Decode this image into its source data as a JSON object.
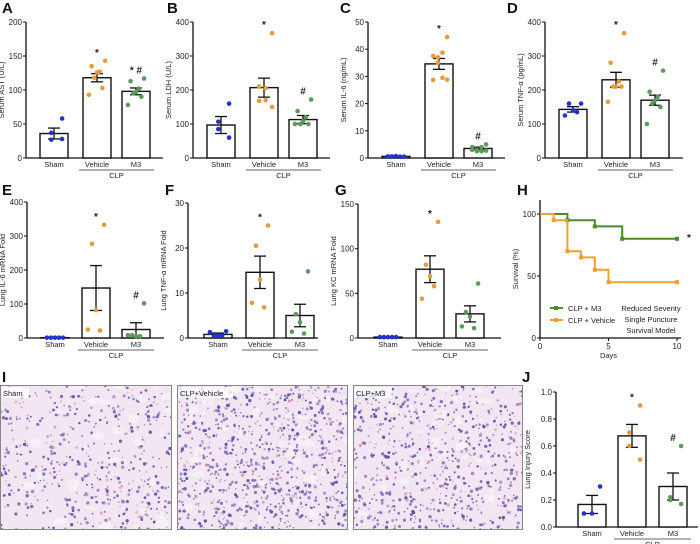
{
  "colors": {
    "Sham": "#2233cc",
    "Vehicle": "#e8993a",
    "M3": "#5c9a5c",
    "surv_m3": "#4e8c2a",
    "surv_vehicle": "#f0a030",
    "tissue_bg": "#f1e6f1",
    "tissue_cell": "#5b4aa8",
    "tissue_pink": "#d88ab8"
  },
  "chart_data": [
    {
      "panel": "A",
      "type": "bar",
      "ylabel": "Serum AST (U/L)",
      "ylim": [
        0,
        200
      ],
      "yticks": [
        0,
        50,
        100,
        150,
        200
      ],
      "group_label": "CLP",
      "groups": [
        {
          "name": "Sham",
          "mean": 36,
          "sem": 8,
          "points": [
            58,
            37,
            27,
            28
          ],
          "annot": ""
        },
        {
          "name": "Vehicle",
          "mean": 118,
          "sem": 6,
          "points": [
            143,
            135,
            127,
            126,
            118,
            103,
            93
          ],
          "annot": "*"
        },
        {
          "name": "M3",
          "mean": 98,
          "sem": 5,
          "points": [
            117,
            113,
            102,
            97,
            95,
            90,
            78
          ],
          "annot": "* #"
        }
      ]
    },
    {
      "panel": "B",
      "type": "bar",
      "ylabel": "Serum LDH (U/L)",
      "ylim": [
        0,
        400
      ],
      "yticks": [
        0,
        100,
        200,
        300,
        400
      ],
      "group_label": "CLP",
      "groups": [
        {
          "name": "Sham",
          "mean": 97,
          "sem": 25,
          "points": [
            160,
            107,
            85,
            60
          ],
          "annot": ""
        },
        {
          "name": "Vehicle",
          "mean": 207,
          "sem": 28,
          "points": [
            367,
            210,
            205,
            170,
            168,
            150
          ],
          "annot": "*"
        },
        {
          "name": "M3",
          "mean": 113,
          "sem": 12,
          "points": [
            172,
            138,
            120,
            108,
            100,
            100,
            100
          ],
          "annot": "#"
        }
      ]
    },
    {
      "panel": "C",
      "type": "bar",
      "ylabel": "Serum IL-6 (ng/mL)",
      "ylim": [
        0,
        50
      ],
      "yticks": [
        0,
        10,
        20,
        30,
        40,
        50
      ],
      "group_label": "CLP",
      "groups": [
        {
          "name": "Sham",
          "mean": 0.6,
          "sem": 0.1,
          "points": [
            0.5,
            0.6,
            0.7,
            0.5,
            0.6
          ],
          "annot": ""
        },
        {
          "name": "Vehicle",
          "mean": 34.6,
          "sem": 2,
          "points": [
            44.5,
            37.5,
            38.7,
            37,
            35,
            29.5,
            28.7,
            28.8
          ],
          "annot": "*"
        },
        {
          "name": "M3",
          "mean": 3.5,
          "sem": 0.5,
          "points": [
            5,
            4,
            4,
            3,
            2.5,
            2.5,
            3,
            2.7
          ],
          "annot": "#"
        }
      ]
    },
    {
      "panel": "D",
      "type": "bar",
      "ylabel": "Serum TNF-α (pg/mL)",
      "ylim": [
        0,
        400
      ],
      "yticks": [
        0,
        100,
        200,
        300,
        400
      ],
      "group_label": "CLP",
      "groups": [
        {
          "name": "Sham",
          "mean": 143,
          "sem": 8,
          "points": [
            160,
            160,
            140,
            135,
            125
          ],
          "annot": ""
        },
        {
          "name": "Vehicle",
          "mean": 230,
          "sem": 22,
          "points": [
            367,
            280,
            225,
            210,
            210,
            210,
            165
          ],
          "annot": "*"
        },
        {
          "name": "M3",
          "mean": 170,
          "sem": 15,
          "points": [
            257,
            195,
            180,
            170,
            160,
            150,
            100
          ],
          "annot": "#"
        }
      ]
    },
    {
      "panel": "E",
      "type": "bar",
      "ylabel": "Lung IL-6 mRNA Fold",
      "ylim": [
        0,
        400
      ],
      "yticks": [
        0,
        100,
        200,
        300,
        400
      ],
      "group_label": "CLP",
      "groups": [
        {
          "name": "Sham",
          "mean": 1,
          "sem": 0.3,
          "points": [
            1,
            1,
            1,
            1,
            1
          ],
          "annot": ""
        },
        {
          "name": "Vehicle",
          "mean": 147,
          "sem": 66,
          "points": [
            333,
            277,
            82,
            22,
            25
          ],
          "annot": "*"
        },
        {
          "name": "M3",
          "mean": 25,
          "sem": 20,
          "points": [
            102,
            8,
            5,
            5,
            8
          ],
          "annot": "#"
        }
      ]
    },
    {
      "panel": "F",
      "type": "bar",
      "ylabel": "Lung TNF-α mRNA Fold",
      "ylim": [
        0,
        30
      ],
      "yticks": [
        0,
        10,
        20,
        30
      ],
      "group_label": "CLP",
      "groups": [
        {
          "name": "Sham",
          "mean": 0.8,
          "sem": 0.3,
          "points": [
            1.5,
            0.5,
            0.5,
            0.5,
            1.3
          ],
          "annot": ""
        },
        {
          "name": "Vehicle",
          "mean": 14.6,
          "sem": 3.6,
          "points": [
            25,
            20.5,
            13,
            6.8,
            7.8
          ],
          "annot": "*"
        },
        {
          "name": "M3",
          "mean": 5,
          "sem": 2.5,
          "points": [
            14.8,
            5.3,
            3.5,
            1,
            1.4
          ],
          "annot": ""
        }
      ]
    },
    {
      "panel": "G",
      "type": "bar",
      "ylabel": "Lung KC mRNA Fold",
      "ylim": [
        0,
        150
      ],
      "yticks": [
        0,
        50,
        100,
        150
      ],
      "group_label": "CLP",
      "groups": [
        {
          "name": "Sham",
          "mean": 1,
          "sem": 0.3,
          "points": [
            1,
            1,
            1,
            1,
            1
          ],
          "annot": ""
        },
        {
          "name": "Vehicle",
          "mean": 77,
          "sem": 15,
          "points": [
            130,
            82,
            69,
            58,
            44
          ],
          "annot": "*"
        },
        {
          "name": "M3",
          "mean": 27,
          "sem": 9,
          "points": [
            61,
            29,
            24,
            11,
            13
          ],
          "annot": ""
        }
      ]
    },
    {
      "panel": "H",
      "type": "line",
      "ylabel": "Survival (%)",
      "xlabel": "Days",
      "ylim": [
        0,
        100
      ],
      "xlim": [
        0,
        10
      ],
      "yticks": [
        0,
        50,
        100
      ],
      "xticks": [
        0,
        5,
        10
      ],
      "series": [
        {
          "name": "CLP + M3",
          "x": [
            0,
            2,
            4,
            6,
            10
          ],
          "y": [
            100,
            95,
            90,
            80,
            80
          ]
        },
        {
          "name": "CLP + Vehicle",
          "x": [
            0,
            1,
            2,
            3,
            4,
            5,
            10
          ],
          "y": [
            100,
            95,
            70,
            65,
            55,
            45,
            45
          ]
        }
      ],
      "annot": "*",
      "note": [
        "Reduced Severity",
        "Single Puncture",
        "Survival Model"
      ]
    },
    {
      "panel": "J",
      "type": "bar",
      "ylabel": "Lung Injury Score",
      "ylim": [
        0,
        1
      ],
      "yticks": [
        "0.0",
        "0.2",
        "0.4",
        "0.6",
        "0.8",
        "1.0"
      ],
      "group_label": "CLP",
      "groups": [
        {
          "name": "Sham",
          "mean": 0.167,
          "sem": 0.067,
          "points": [
            0.3,
            0.1,
            0.1
          ],
          "annot": ""
        },
        {
          "name": "Vehicle",
          "mean": 0.675,
          "sem": 0.085,
          "points": [
            0.9,
            0.7,
            0.6,
            0.5
          ],
          "annot": "*"
        },
        {
          "name": "M3",
          "mean": 0.3,
          "sem": 0.1,
          "points": [
            0.6,
            0.22,
            0.2,
            0.17
          ],
          "annot": "#"
        }
      ]
    }
  ],
  "histology": {
    "panel": "I",
    "images": [
      {
        "label": "Sham"
      },
      {
        "label": "CLP+Vehicle"
      },
      {
        "label": "CLP+M3"
      }
    ]
  }
}
